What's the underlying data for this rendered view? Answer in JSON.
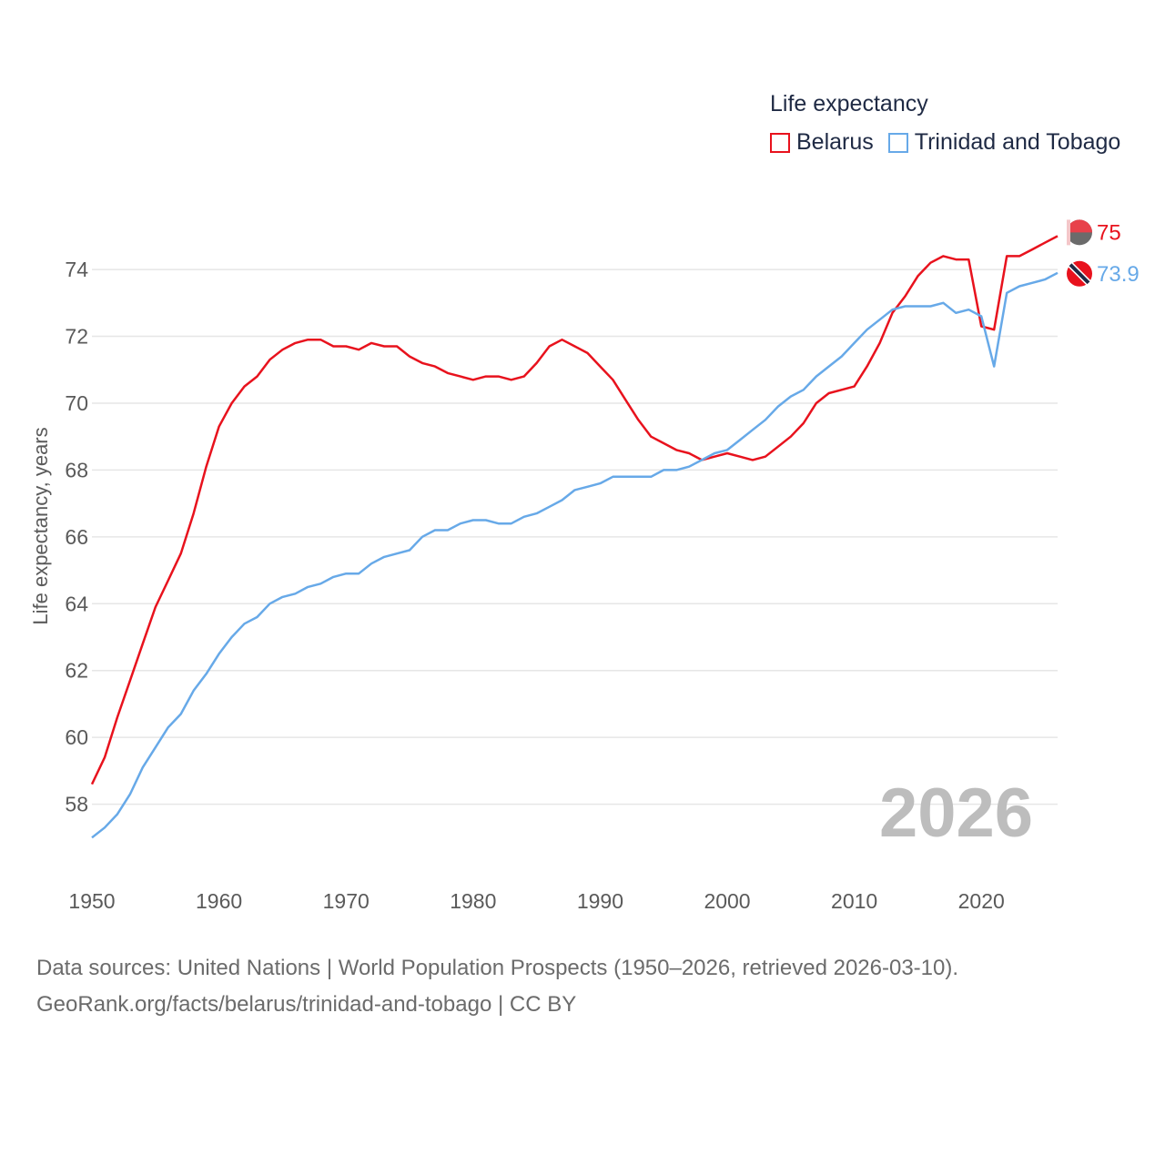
{
  "legend": {
    "title": "Life expectancy",
    "items": [
      {
        "label": "Belarus",
        "color": "#e8121d"
      },
      {
        "label": "Trinidad and Tobago",
        "color": "#67a9e8"
      }
    ]
  },
  "big_year": "2026",
  "footer": {
    "line1": "Data sources: United Nations | World Population Prospects (1950–2026, retrieved 2026-03-10).",
    "line2": "GeoRank.org/facts/belarus/trinidad-and-tobago | CC BY"
  },
  "chart_data": {
    "type": "line",
    "title": "Life expectancy",
    "xlabel": "",
    "ylabel": "Life expectancy, years",
    "xlim": [
      1950,
      2026
    ],
    "ylim": [
      56.6,
      75.8
    ],
    "grid": true,
    "legend_position": "top-right",
    "xticks": [
      1950,
      1960,
      1970,
      1980,
      1990,
      2000,
      2010,
      2020
    ],
    "yticks": [
      58,
      60,
      62,
      64,
      66,
      68,
      70,
      72,
      74
    ],
    "x": [
      1950,
      1951,
      1952,
      1953,
      1954,
      1955,
      1956,
      1957,
      1958,
      1959,
      1960,
      1961,
      1962,
      1963,
      1964,
      1965,
      1966,
      1967,
      1968,
      1969,
      1970,
      1971,
      1972,
      1973,
      1974,
      1975,
      1976,
      1977,
      1978,
      1979,
      1980,
      1981,
      1982,
      1983,
      1984,
      1985,
      1986,
      1987,
      1988,
      1989,
      1990,
      1991,
      1992,
      1993,
      1994,
      1995,
      1996,
      1997,
      1998,
      1999,
      2000,
      2001,
      2002,
      2003,
      2004,
      2005,
      2006,
      2007,
      2008,
      2009,
      2010,
      2011,
      2012,
      2013,
      2014,
      2015,
      2016,
      2017,
      2018,
      2019,
      2020,
      2021,
      2022,
      2023,
      2024,
      2025,
      2026
    ],
    "series": [
      {
        "name": "Belarus",
        "color": "#e8121d",
        "end_label": "75",
        "values": [
          58.6,
          59.4,
          60.6,
          61.7,
          62.8,
          63.9,
          64.7,
          65.5,
          66.7,
          68.1,
          69.3,
          70.0,
          70.5,
          70.8,
          71.3,
          71.6,
          71.8,
          71.9,
          71.9,
          71.7,
          71.7,
          71.6,
          71.8,
          71.7,
          71.7,
          71.4,
          71.2,
          71.1,
          70.9,
          70.8,
          70.7,
          70.8,
          70.8,
          70.7,
          70.8,
          71.2,
          71.7,
          71.9,
          71.7,
          71.5,
          71.1,
          70.7,
          70.1,
          69.5,
          69.0,
          68.8,
          68.6,
          68.5,
          68.3,
          68.4,
          68.5,
          68.4,
          68.3,
          68.4,
          68.7,
          69.0,
          69.4,
          70.0,
          70.3,
          70.4,
          70.5,
          71.1,
          71.8,
          72.7,
          73.2,
          73.8,
          74.2,
          74.4,
          74.3,
          74.3,
          72.3,
          72.2,
          74.4,
          74.4,
          74.6,
          74.8,
          75.0
        ]
      },
      {
        "name": "Trinidad and Tobago",
        "color": "#67a9e8",
        "end_label": "73.9",
        "values": [
          57.0,
          57.3,
          57.7,
          58.3,
          59.1,
          59.7,
          60.3,
          60.7,
          61.4,
          61.9,
          62.5,
          63.0,
          63.4,
          63.6,
          64.0,
          64.2,
          64.3,
          64.5,
          64.6,
          64.8,
          64.9,
          64.9,
          65.2,
          65.4,
          65.5,
          65.6,
          66.0,
          66.2,
          66.2,
          66.4,
          66.5,
          66.5,
          66.4,
          66.4,
          66.6,
          66.7,
          66.9,
          67.1,
          67.4,
          67.5,
          67.6,
          67.8,
          67.8,
          67.8,
          67.8,
          68.0,
          68.0,
          68.1,
          68.3,
          68.5,
          68.6,
          68.9,
          69.2,
          69.5,
          69.9,
          70.2,
          70.4,
          70.8,
          71.1,
          71.4,
          71.8,
          72.2,
          72.5,
          72.8,
          72.9,
          72.9,
          72.9,
          73.0,
          72.7,
          72.8,
          72.6,
          71.1,
          73.3,
          73.5,
          73.6,
          73.7,
          73.9
        ]
      }
    ]
  }
}
